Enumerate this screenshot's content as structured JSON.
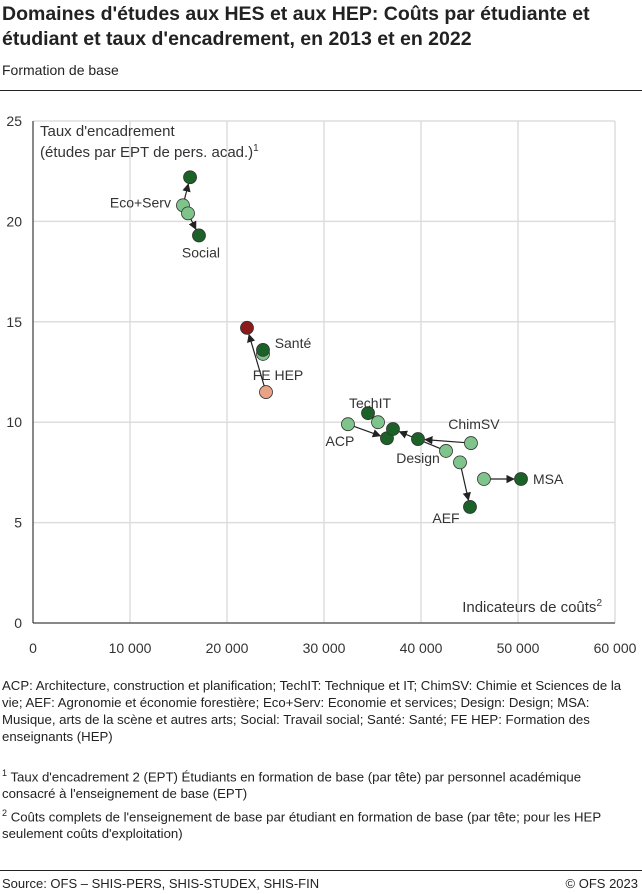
{
  "title": "Domaines d'études aux HES et aux HEP: Coûts par étudiante et étudiant et taux d'encadrement, en 2013 et en 2022",
  "subtitle": "Formation de base",
  "chart_data": {
    "type": "scatter",
    "ylabel_line1": "Taux d'encadrement",
    "ylabel_line2": "(études par EPT de pers. acad.)",
    "ylabel_sup": "1",
    "xlabel": "Indicateurs de coûts",
    "xlabel_sup": "2",
    "xlim": [
      0,
      60000
    ],
    "ylim": [
      0,
      25
    ],
    "xticks": [
      0,
      10000,
      20000,
      30000,
      40000,
      50000,
      60000
    ],
    "xtick_labels": [
      "0",
      "10 000",
      "20 000",
      "30 000",
      "40 000",
      "50 000",
      "60 000"
    ],
    "yticks": [
      0,
      5,
      10,
      15,
      20,
      25
    ],
    "grid": true,
    "colors": {
      "y2013": "#7fc48a",
      "y2022": "#1b6128",
      "hep2013": "#e8a386",
      "hep2022": "#8b1a1a"
    },
    "points": [
      {
        "label": "Eco+Serv",
        "x2013": 15460,
        "y2013": 20.8,
        "x2022": 16190,
        "y2022": 22.2
      },
      {
        "label": "Social",
        "x2013": 15980,
        "y2013": 20.4,
        "x2022": 17110,
        "y2022": 19.3
      },
      {
        "label": "FE HEP",
        "x2013": 24020,
        "y2013": 11.5,
        "x2022": 22060,
        "y2022": 14.7,
        "hep": true
      },
      {
        "label": "Santé",
        "x2013": 23710,
        "y2013": 13.4,
        "x2022": 23710,
        "y2022": 13.6
      },
      {
        "label": "TechIT",
        "x2013": 35570,
        "y2013": 10.0,
        "x2022": 34540,
        "y2022": 10.45
      },
      {
        "label": "ACP",
        "x2013": 32470,
        "y2013": 9.9,
        "x2022": 36490,
        "y2022": 9.2
      },
      {
        "label": "Design",
        "x2013": 42580,
        "y2013": 8.57,
        "x2022": 37110,
        "y2022": 9.66
      },
      {
        "label": "ChimSV",
        "x2013": 45150,
        "y2013": 8.96,
        "x2022": 39690,
        "y2022": 9.16
      },
      {
        "label": "AEF",
        "x2013": 44020,
        "y2013": 8.0,
        "x2022": 45050,
        "y2022": 5.78
      },
      {
        "label": "MSA",
        "x2013": 46490,
        "y2013": 7.17,
        "x2022": 50310,
        "y2022": 7.17
      }
    ]
  },
  "notes": {
    "abbrev": "ACP: Architecture, construction et planification; TechIT: Technique et IT; ChimSV: Chimie et Sciences de la vie; AEF: Agronomie et économie forestière; Eco+Serv: Economie et services; Design: Design; MSA: Musique, arts de la scène et autres arts; Social: Travail social; Santé: Santé; FE HEP: Formation des enseignants (HEP)",
    "n1_sup": "1",
    "n1": "Taux d'encadrement 2 (EPT) Étudiants en formation de base (par tête) par personnel académique consacré à l'enseignement de base (EPT)",
    "n2_sup": "2",
    "n2": "Coûts complets de l'enseignement de base par étudiant en formation de base (par tête; pour les HEP seulement coûts d'exploitation)"
  },
  "footer": {
    "source": "Source: OFS – SHIS-PERS, SHIS-STUDEX, SHIS-FIN",
    "copyright": "© OFS 2023"
  }
}
